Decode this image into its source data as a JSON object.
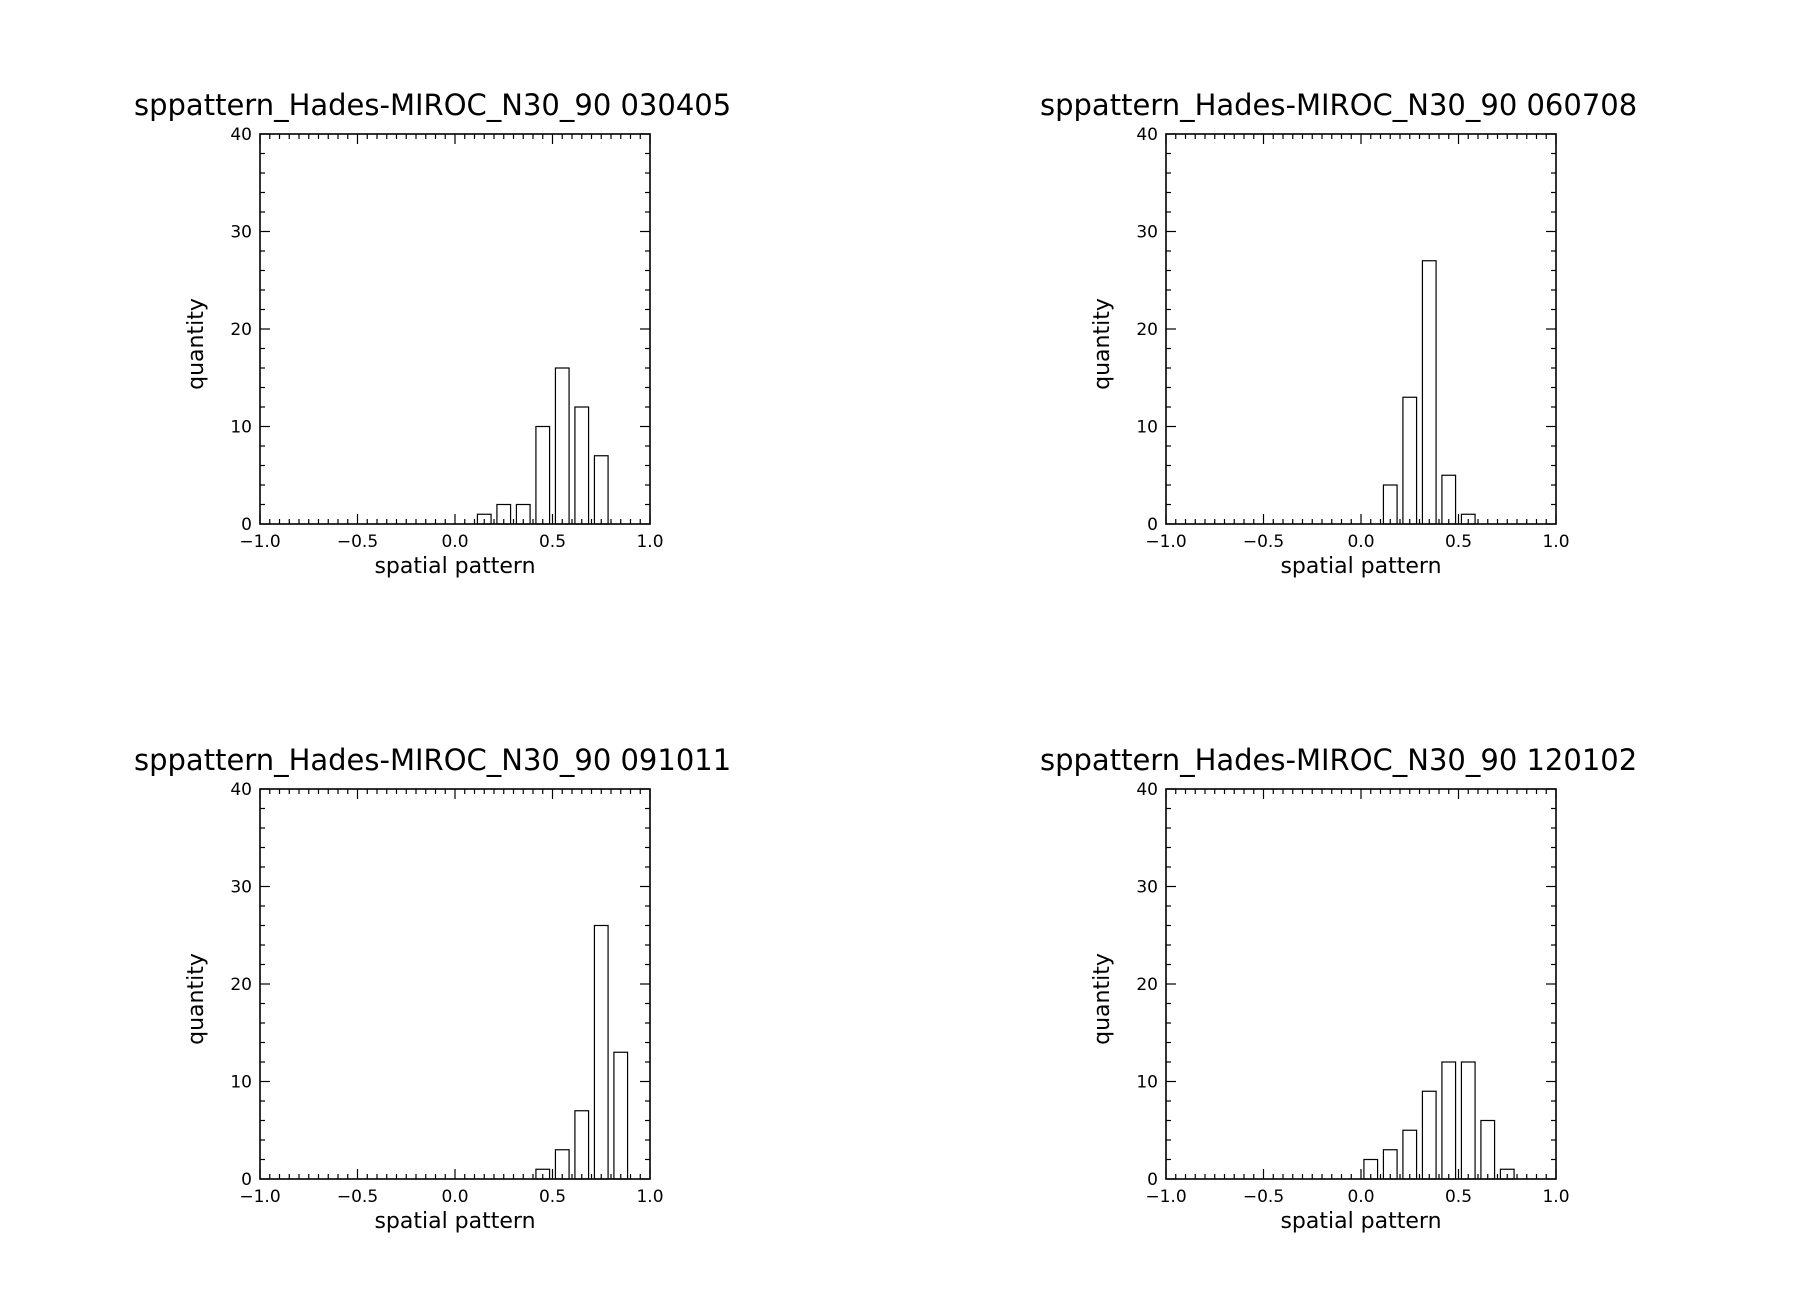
{
  "chart_data": [
    {
      "type": "bar",
      "title": "sppattern_Hades-MIROC_N30_90 030405",
      "xlabel": "spatial pattern",
      "ylabel": "quantity",
      "xlim": [
        -1.0,
        1.0
      ],
      "ylim": [
        0,
        40
      ],
      "xticks": [
        "-1.0",
        "-0.5",
        "0.0",
        "0.5",
        "1.0"
      ],
      "yticks": [
        "0",
        "10",
        "20",
        "30",
        "40"
      ],
      "bin_width": 0.1,
      "bin_centers": [
        0.15,
        0.25,
        0.35,
        0.45,
        0.55,
        0.65,
        0.75
      ],
      "values": [
        1,
        2,
        2,
        10,
        16,
        12,
        7
      ]
    },
    {
      "type": "bar",
      "title": "sppattern_Hades-MIROC_N30_90 060708",
      "xlabel": "spatial pattern",
      "ylabel": "quantity",
      "xlim": [
        -1.0,
        1.0
      ],
      "ylim": [
        0,
        40
      ],
      "xticks": [
        "-1.0",
        "-0.5",
        "0.0",
        "0.5",
        "1.0"
      ],
      "yticks": [
        "0",
        "10",
        "20",
        "30",
        "40"
      ],
      "bin_width": 0.1,
      "bin_centers": [
        0.15,
        0.25,
        0.35,
        0.45,
        0.55
      ],
      "values": [
        4,
        13,
        27,
        5,
        1
      ]
    },
    {
      "type": "bar",
      "title": "sppattern_Hades-MIROC_N30_90 091011",
      "xlabel": "spatial pattern",
      "ylabel": "quantity",
      "xlim": [
        -1.0,
        1.0
      ],
      "ylim": [
        0,
        40
      ],
      "xticks": [
        "-1.0",
        "-0.5",
        "0.0",
        "0.5",
        "1.0"
      ],
      "yticks": [
        "0",
        "10",
        "20",
        "30",
        "40"
      ],
      "bin_width": 0.1,
      "bin_centers": [
        0.45,
        0.55,
        0.65,
        0.75,
        0.85
      ],
      "values": [
        1,
        3,
        7,
        26,
        13
      ]
    },
    {
      "type": "bar",
      "title": "sppattern_Hades-MIROC_N30_90 120102",
      "xlabel": "spatial pattern",
      "ylabel": "quantity",
      "xlim": [
        -1.0,
        1.0
      ],
      "ylim": [
        0,
        40
      ],
      "xticks": [
        "-1.0",
        "-0.5",
        "0.0",
        "0.5",
        "1.0"
      ],
      "yticks": [
        "0",
        "10",
        "20",
        "30",
        "40"
      ],
      "bin_width": 0.1,
      "bin_centers": [
        0.05,
        0.15,
        0.25,
        0.35,
        0.45,
        0.55,
        0.65,
        0.75
      ],
      "values": [
        2,
        3,
        5,
        9,
        12,
        12,
        6,
        1
      ]
    }
  ]
}
